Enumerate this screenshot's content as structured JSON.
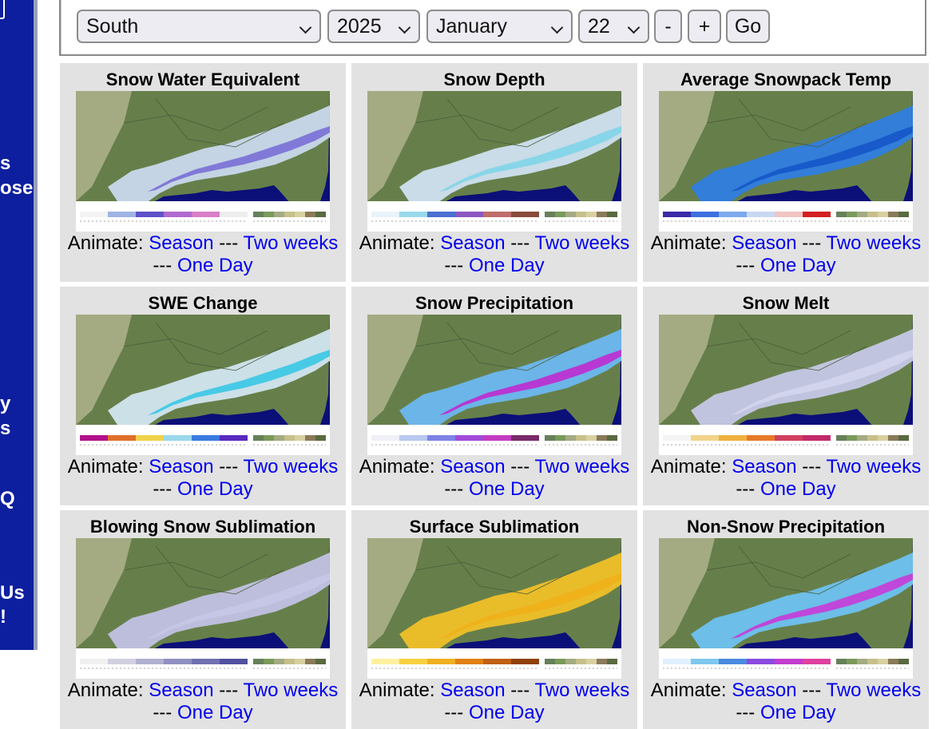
{
  "sidebar": {
    "fragments": [
      "s",
      "ose",
      "y",
      "s",
      "Q",
      "Us",
      "!"
    ]
  },
  "controls": {
    "region": "South",
    "year": "2025",
    "month": "January",
    "day": "22",
    "minus_label": "-",
    "plus_label": "+",
    "go_label": "Go"
  },
  "animate": {
    "prefix": "Animate:",
    "season": "Season",
    "sep": "---",
    "two_weeks": "Two weeks",
    "one_day": "One Day"
  },
  "tiles": [
    {
      "title": "Snow Water Equivalent",
      "scheme": "swe"
    },
    {
      "title": "Snow Depth",
      "scheme": "depth"
    },
    {
      "title": "Average Snowpack Temp",
      "scheme": "temp"
    },
    {
      "title": "SWE Change",
      "scheme": "change"
    },
    {
      "title": "Snow Precipitation",
      "scheme": "precip"
    },
    {
      "title": "Snow Melt",
      "scheme": "melt"
    },
    {
      "title": "Blowing Snow Sublimation",
      "scheme": "blow"
    },
    {
      "title": "Surface Sublimation",
      "scheme": "surface"
    },
    {
      "title": "Non-Snow Precipitation",
      "scheme": "nonsnow"
    }
  ],
  "colors": {
    "sidebar": "#0d1f9e",
    "link": "#0000ee",
    "tile_bg": "#e2e2e2",
    "land": "#667f4a",
    "arid_land": "#a4ab83",
    "ocean": "#0b0f78"
  }
}
